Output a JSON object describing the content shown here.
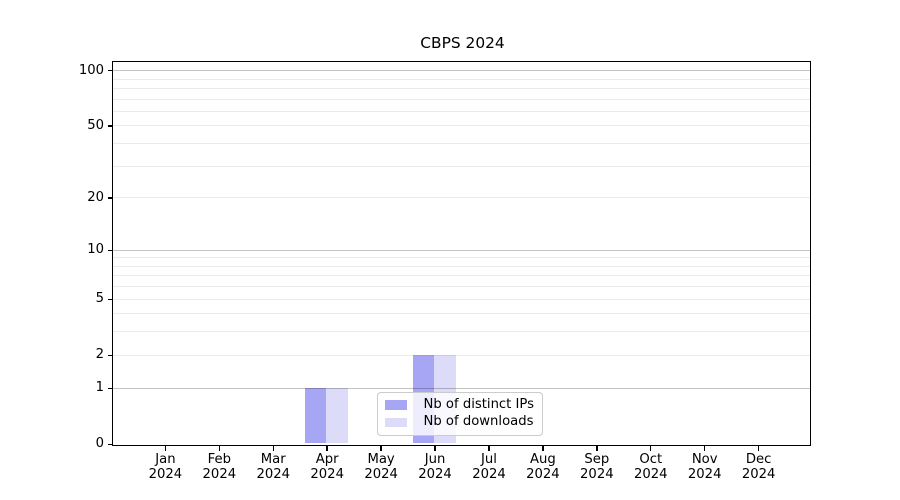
{
  "chart_data": {
    "type": "bar",
    "title": "CBPS 2024",
    "categories": [
      "Jan",
      "Feb",
      "Mar",
      "Apr",
      "May",
      "Jun",
      "Jul",
      "Aug",
      "Sep",
      "Oct",
      "Nov",
      "Dec"
    ],
    "category_year": "2024",
    "series": [
      {
        "name": "Nb of distinct IPs",
        "color": "#a6a6f4",
        "values": [
          0,
          0,
          0,
          1,
          0,
          2,
          0,
          0,
          0,
          0,
          0,
          0
        ]
      },
      {
        "name": "Nb of downloads",
        "color": "#dcdcf9",
        "values": [
          0,
          0,
          0,
          1,
          0,
          2,
          0,
          0,
          0,
          0,
          0,
          0
        ]
      }
    ],
    "yscale": "log1p-symlog",
    "ylim": [
      0,
      113
    ],
    "ytick_values": [
      0,
      1,
      2,
      5,
      10,
      20,
      50,
      100
    ],
    "ygrid_major": [
      1,
      10,
      100
    ],
    "ygrid_minor": [
      2,
      3,
      4,
      5,
      6,
      7,
      8,
      9,
      20,
      30,
      40,
      50,
      60,
      70,
      80,
      90
    ],
    "xlabel": "",
    "ylabel": "",
    "grid": true,
    "legend": {
      "position": "lower center"
    }
  }
}
